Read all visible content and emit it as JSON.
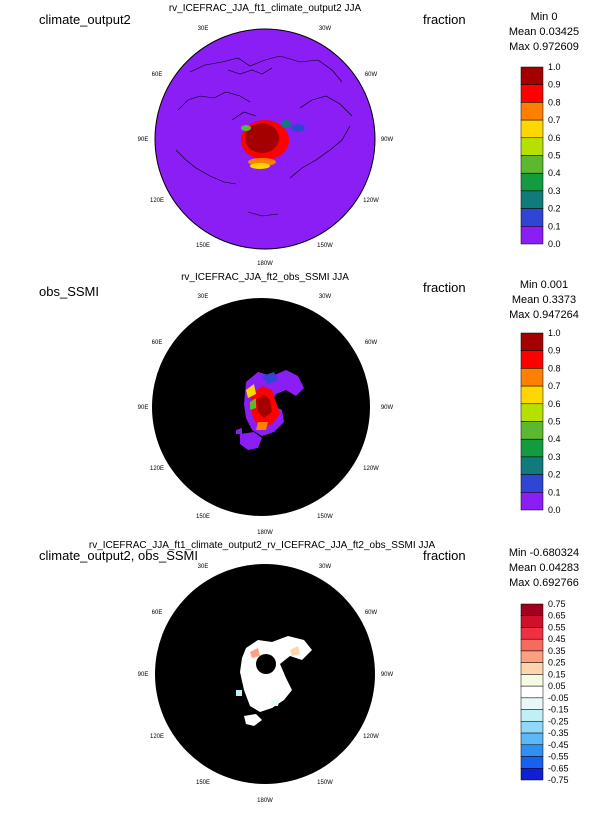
{
  "panels": [
    {
      "label": "climate_output2",
      "title": "rv_ICEFRAC_JJA_ft1_climate_output2  JJA",
      "units": "fraction",
      "stats": {
        "min": "Min 0",
        "mean": "Mean 0.03425",
        "max": "Max 0.972609"
      },
      "lon_labels": [
        "30E",
        "30W",
        "60E",
        "60W",
        "90E",
        "90W",
        "120E",
        "120W",
        "150E",
        "150W",
        "180W"
      ],
      "colorbar": {
        "labels": [
          "1.0",
          "0.9",
          "0.8",
          "0.7",
          "0.6",
          "0.5",
          "0.4",
          "0.3",
          "0.2",
          "0.1",
          "0.0"
        ],
        "colors": [
          "#a50000",
          "#ff0000",
          "#ff8000",
          "#ffd700",
          "#b5e000",
          "#5cb82f",
          "#139b3f",
          "#117a7a",
          "#2e46d3",
          "#8a1ef5"
        ]
      },
      "background_color": "#8a1ef5"
    },
    {
      "label": "obs_SSMI",
      "title": "rv_ICEFRAC_JJA_ft2_obs_SSMI  JJA",
      "units": "fraction",
      "stats": {
        "min": "Min 0.001",
        "mean": "Mean 0.3373",
        "max": "Max 0.947264"
      },
      "lon_labels": [
        "30E",
        "30W",
        "60E",
        "60W",
        "90E",
        "90W",
        "120E",
        "120W",
        "150E",
        "150W",
        "180W"
      ],
      "colorbar": {
        "labels": [
          "1.0",
          "0.9",
          "0.8",
          "0.7",
          "0.6",
          "0.5",
          "0.4",
          "0.3",
          "0.2",
          "0.1",
          "0.0"
        ],
        "colors": [
          "#a50000",
          "#ff0000",
          "#ff8000",
          "#ffd700",
          "#b5e000",
          "#5cb82f",
          "#139b3f",
          "#117a7a",
          "#2e46d3",
          "#8a1ef5"
        ]
      },
      "background_color": "#000000"
    },
    {
      "label": "climate_output2, obs_SSMI",
      "title": "rv_ICEFRAC_JJA_ft1_climate_output2_rv_ICEFRAC_JJA_ft2_obs_SSMI  JJA",
      "units": "fraction",
      "stats": {
        "min": "Min -0.680324",
        "mean": "Mean 0.04283",
        "max": "Max 0.692766"
      },
      "lon_labels": [
        "30E",
        "30W",
        "60E",
        "60W",
        "90E",
        "90W",
        "120E",
        "120W",
        "150E",
        "150W",
        "180W"
      ],
      "colorbar": {
        "labels": [
          "0.75",
          "0.65",
          "0.55",
          "0.45",
          "0.35",
          "0.25",
          "0.15",
          "0.05",
          "-0.05",
          "-0.15",
          "-0.25",
          "-0.35",
          "-0.45",
          "-0.55",
          "-0.65",
          "-0.75"
        ],
        "colors": [
          "#a0001e",
          "#d0102a",
          "#ee3040",
          "#f76a5e",
          "#fba080",
          "#ffd6ac",
          "#f4fbe0",
          "#ffffff",
          "#e6f8f8",
          "#bff0f8",
          "#90d8f8",
          "#5cb8f8",
          "#3090f0",
          "#1860f0",
          "#1020d0"
        ]
      },
      "background_color": "#000000"
    }
  ]
}
